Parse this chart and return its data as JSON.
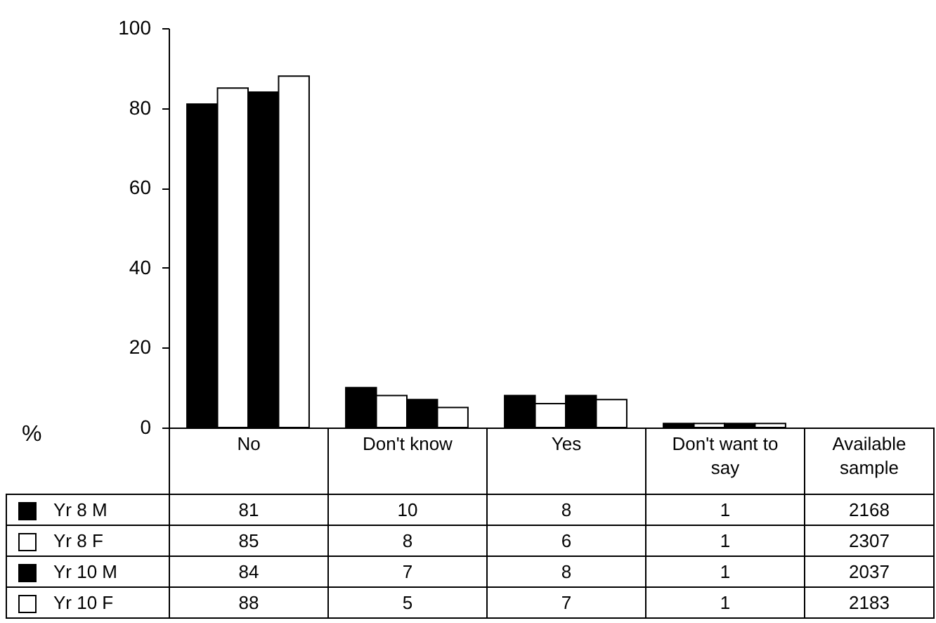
{
  "chart_data": {
    "type": "bar",
    "ylabel": "%",
    "categories": [
      "No",
      "Don't know",
      "Yes",
      "Don't want to say"
    ],
    "series": [
      {
        "name": "Yr 8 M",
        "color": "#000000",
        "values": [
          81,
          10,
          8,
          1
        ]
      },
      {
        "name": "Yr 8 F",
        "color": "#ffffff",
        "values": [
          85,
          8,
          6,
          1
        ]
      },
      {
        "name": "Yr 10 M",
        "color": "#000000",
        "values": [
          84,
          7,
          8,
          1
        ]
      },
      {
        "name": "Yr 10 F",
        "color": "#ffffff",
        "values": [
          88,
          5,
          7,
          1
        ]
      }
    ],
    "ylim": [
      0,
      100
    ],
    "yticks": [
      0,
      20,
      40,
      60,
      80,
      100
    ],
    "data_labels": true,
    "legend": "bottom left",
    "grid": false,
    "annotations": [
      "Available sample",
      "2168",
      "2307",
      "2037",
      "2183"
    ]
  }
}
